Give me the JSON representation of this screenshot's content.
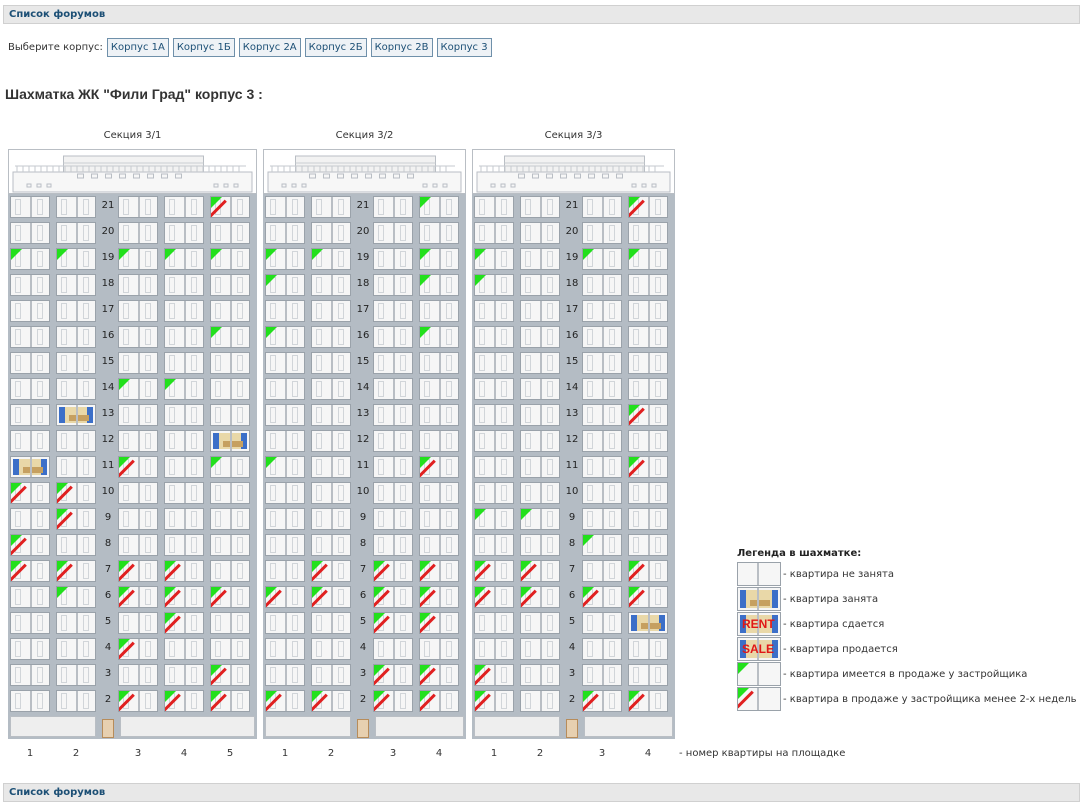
{
  "forum_list_label": "Список форумов",
  "corpus": {
    "label": "Выберите корпус:",
    "buttons": [
      "Корпус 1А",
      "Корпус 1Б",
      "Корпус 2А",
      "Корпус 2Б",
      "Корпус 2В",
      "Корпус 3"
    ]
  },
  "title": "Шахматка ЖК \"Фили Град\" корпус 3 :",
  "floors": [
    "21",
    "20",
    "19",
    "18",
    "17",
    "16",
    "15",
    "14",
    "13",
    "12",
    "11",
    "10",
    "9",
    "8",
    "7",
    "6",
    "5",
    "4",
    "3",
    "2"
  ],
  "sections": [
    {
      "name": "Секция 3/1",
      "columns": [
        "1",
        "2",
        "3",
        "4",
        "5"
      ],
      "status": {
        "21": [
          "",
          "",
          "",
          "",
          "r"
        ],
        "19": [
          "g",
          "g",
          "g",
          "g",
          "g"
        ],
        "16": [
          "",
          "",
          "",
          "",
          "g"
        ],
        "14": [
          "",
          "",
          "g",
          "g",
          ""
        ],
        "13": [
          "",
          "o",
          "",
          "",
          ""
        ],
        "12": [
          "",
          "",
          "",
          "",
          "o"
        ],
        "11": [
          "o",
          "",
          "r",
          "",
          "g"
        ],
        "10": [
          "r",
          "r",
          "",
          "",
          ""
        ],
        "9": [
          "",
          "r",
          "",
          "",
          ""
        ],
        "8": [
          "r",
          "",
          "",
          "",
          ""
        ],
        "7": [
          "r",
          "r",
          "r",
          "r",
          ""
        ],
        "6": [
          "",
          "g",
          "r",
          "r",
          "r"
        ],
        "5": [
          "",
          "",
          "",
          "r",
          ""
        ],
        "4": [
          "",
          "",
          "r",
          "",
          ""
        ],
        "3": [
          "",
          "",
          "",
          "",
          "r"
        ],
        "2": [
          "",
          "",
          "r",
          "r",
          "r"
        ]
      }
    },
    {
      "name": "Секция 3/2",
      "columns": [
        "1",
        "2",
        "3",
        "4"
      ],
      "status": {
        "21": [
          "",
          "",
          "",
          "g"
        ],
        "19": [
          "g",
          "g",
          "",
          "g"
        ],
        "18": [
          "g",
          "",
          "",
          "g"
        ],
        "16": [
          "g",
          "",
          "",
          "g"
        ],
        "11": [
          "g",
          "",
          "",
          "r"
        ],
        "7": [
          "",
          "r",
          "r",
          "r"
        ],
        "6": [
          "r",
          "r",
          "r",
          "r"
        ],
        "5": [
          "",
          "",
          "r",
          "r"
        ],
        "3": [
          "",
          "",
          "r",
          "r"
        ],
        "2": [
          "r",
          "r",
          "r",
          "r"
        ]
      }
    },
    {
      "name": "Секция 3/3",
      "columns": [
        "1",
        "2",
        "3",
        "4"
      ],
      "status": {
        "21": [
          "",
          "",
          "",
          "r"
        ],
        "19": [
          "g",
          "",
          "g",
          "g"
        ],
        "18": [
          "g",
          "",
          "",
          ""
        ],
        "13": [
          "",
          "",
          "",
          "r"
        ],
        "11": [
          "",
          "",
          "",
          "r"
        ],
        "9": [
          "g",
          "g",
          "",
          ""
        ],
        "8": [
          "",
          "",
          "g",
          ""
        ],
        "7": [
          "r",
          "r",
          "",
          "r"
        ],
        "6": [
          "r",
          "r",
          "r",
          "r"
        ],
        "5": [
          "",
          "",
          "",
          "o"
        ],
        "3": [
          "r",
          "",
          "",
          ""
        ],
        "2": [
          "r",
          "",
          "r",
          "r"
        ]
      }
    }
  ],
  "column_note": "- номер квартиры на площадке",
  "legend": {
    "title": "Легенда в шахматке:",
    "items": [
      {
        "type": "free",
        "text": "- квартира не занята"
      },
      {
        "type": "occupied",
        "text": "- квартира занята"
      },
      {
        "type": "rent",
        "mark": "RENT",
        "text": "- квартира сдается"
      },
      {
        "type": "sale",
        "mark": "SALE",
        "text": "- квартира продается"
      },
      {
        "type": "dev",
        "text": "- квартира имеется в продаже у застройщика"
      },
      {
        "type": "dev-new",
        "text": "- квартира в продаже у застройщика менее 2-х недель"
      }
    ]
  },
  "colors": {
    "accent": "#1c4f75",
    "dev_sale": "#22e01c",
    "new_mark": "#e02020"
  }
}
